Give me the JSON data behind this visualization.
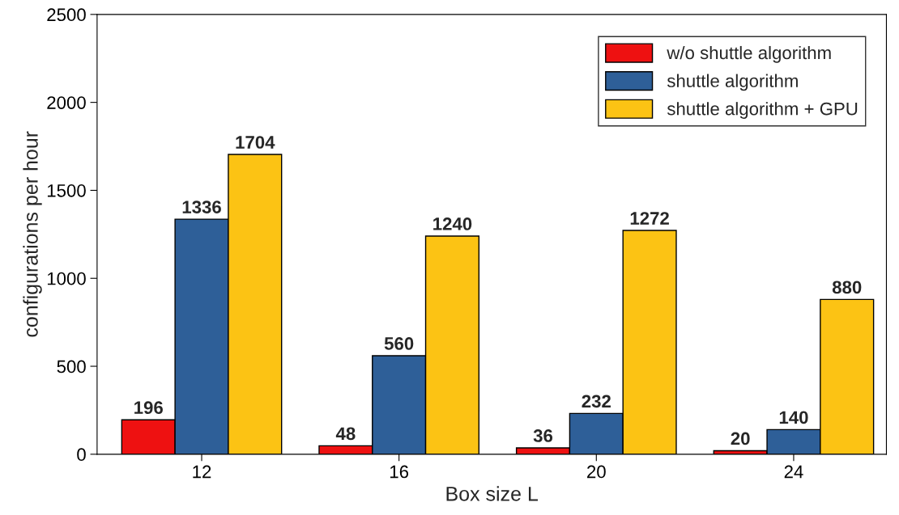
{
  "chart_data": {
    "type": "bar",
    "xlabel": "Box size L",
    "ylabel": "configurations per hour",
    "categories": [
      "12",
      "16",
      "20",
      "24"
    ],
    "series": [
      {
        "name": "w/o shuttle algorithm",
        "color": "#ee1111",
        "values": [
          196,
          48,
          36,
          20
        ]
      },
      {
        "name": "shuttle algorithm",
        "color": "#2e5f98",
        "values": [
          1336,
          560,
          232,
          140
        ]
      },
      {
        "name": "shuttle algorithm + GPU",
        "color": "#fcc314",
        "values": [
          1704,
          1240,
          1272,
          880
        ]
      }
    ],
    "ylim": [
      0,
      2500
    ],
    "yticks": [
      0,
      500,
      1000,
      1500,
      2000,
      2500
    ],
    "data_labels": true,
    "legend": "top right",
    "grid": false
  }
}
